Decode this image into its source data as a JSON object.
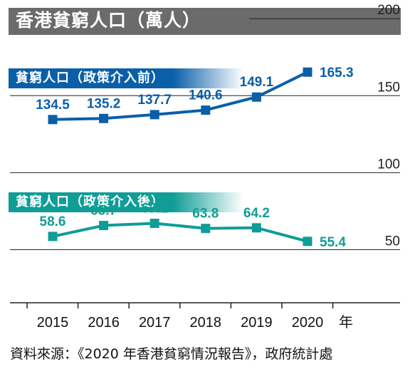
{
  "page_title": "香港貧窮人口（萬人）",
  "source": "資料來源：《2020 年香港貧窮情況報告》，政府統計處",
  "colors": {
    "blue": "#0a5fa8",
    "teal": "#0f9d96",
    "title_bg": "#6b6b6b",
    "axis": "#222222"
  },
  "chart_data": {
    "type": "line",
    "title": "香港貧窮人口（萬人）",
    "categories": [
      "2015",
      "2016",
      "2017",
      "2018",
      "2019",
      "2020"
    ],
    "x_unit": "年",
    "y_ticks": [
      "200",
      "150",
      "100",
      "50"
    ],
    "ylim": [
      0,
      200
    ],
    "grid": false,
    "series": [
      {
        "name": "貧窮人口（政策介入前）",
        "values": [
          134.5,
          135.2,
          137.7,
          140.6,
          149.1,
          165.3
        ],
        "labels": [
          "134.5",
          "135.2",
          "137.7",
          "140.6",
          "149.1",
          "165.3"
        ]
      },
      {
        "name": "貧窮人口（政策介入後）",
        "values": [
          58.6,
          65.7,
          67.1,
          63.8,
          64.2,
          55.4
        ],
        "labels": [
          "58.6",
          "65.7",
          "67.1",
          "63.8",
          "64.2",
          "55.4"
        ]
      }
    ]
  }
}
